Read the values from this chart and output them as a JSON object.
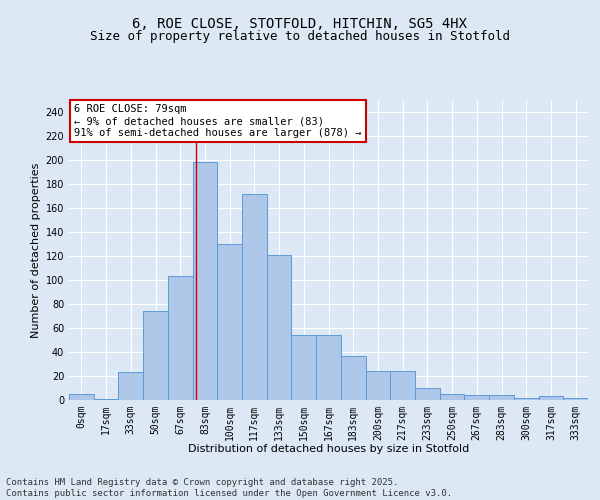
{
  "title1": "6, ROE CLOSE, STOTFOLD, HITCHIN, SG5 4HX",
  "title2": "Size of property relative to detached houses in Stotfold",
  "xlabel": "Distribution of detached houses by size in Stotfold",
  "ylabel": "Number of detached properties",
  "bar_labels": [
    "0sqm",
    "17sqm",
    "33sqm",
    "50sqm",
    "67sqm",
    "83sqm",
    "100sqm",
    "117sqm",
    "133sqm",
    "150sqm",
    "167sqm",
    "183sqm",
    "200sqm",
    "217sqm",
    "233sqm",
    "250sqm",
    "267sqm",
    "283sqm",
    "300sqm",
    "317sqm",
    "333sqm"
  ],
  "bar_values": [
    5,
    1,
    23,
    74,
    103,
    198,
    130,
    172,
    121,
    54,
    54,
    37,
    24,
    24,
    10,
    5,
    4,
    4,
    2,
    3,
    2
  ],
  "bar_color": "#aec6e8",
  "bar_edge_color": "#5b9bd5",
  "vline_x": 4.65,
  "annotation_text": "6 ROE CLOSE: 79sqm\n← 9% of detached houses are smaller (83)\n91% of semi-detached houses are larger (878) →",
  "annotation_box_color": "#ffffff",
  "annotation_box_edge": "#cc0000",
  "vline_color": "#cc0000",
  "background_color": "#dce9f5",
  "plot_bg_color": "#dce9f5",
  "ylim": [
    0,
    250
  ],
  "yticks": [
    0,
    20,
    40,
    60,
    80,
    100,
    120,
    140,
    160,
    180,
    200,
    220,
    240
  ],
  "footer": "Contains HM Land Registry data © Crown copyright and database right 2025.\nContains public sector information licensed under the Open Government Licence v3.0.",
  "title_fontsize": 10,
  "subtitle_fontsize": 9,
  "axis_label_fontsize": 8,
  "tick_fontsize": 7,
  "annotation_fontsize": 7.5,
  "footer_fontsize": 6.5
}
